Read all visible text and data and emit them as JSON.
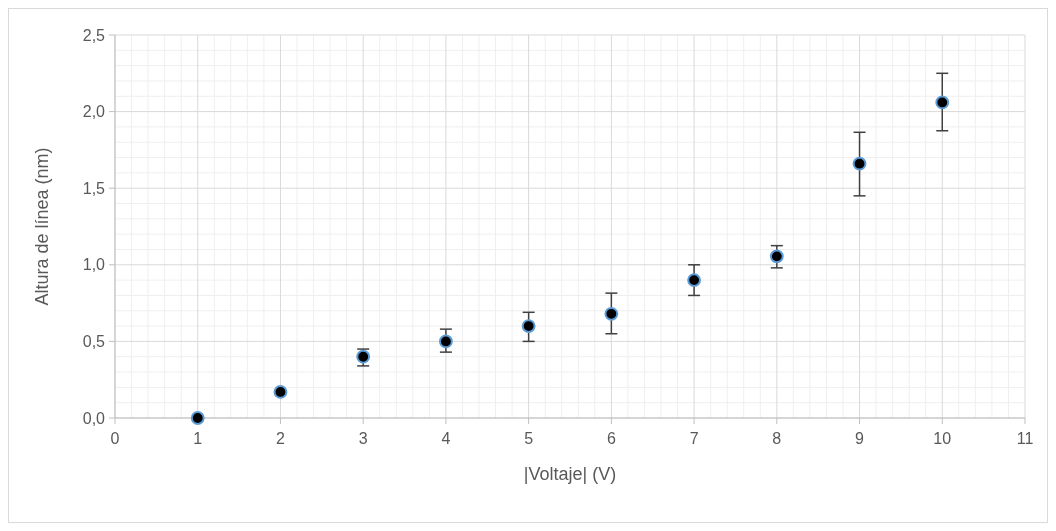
{
  "chart_data": {
    "type": "scatter",
    "xlabel": "|Voltaje| (V)",
    "ylabel": "Altura de línea (nm)",
    "x": [
      1,
      2,
      3,
      4,
      5,
      6,
      7,
      8,
      9,
      10
    ],
    "values": [
      0,
      0.17,
      0.4,
      0.5,
      0.6,
      0.68,
      0.9,
      1.055,
      1.66,
      2.06
    ],
    "errors": [
      null,
      null,
      [
        0.34,
        0.45
      ],
      [
        0.43,
        0.58
      ],
      [
        0.5,
        0.69
      ],
      [
        0.55,
        0.815
      ],
      [
        0.8,
        1.0
      ],
      [
        0.98,
        1.125
      ],
      [
        1.45,
        1.865
      ],
      [
        1.875,
        2.25
      ]
    ],
    "color": "#000000",
    "marker": "circle",
    "grid": true,
    "xlim": [
      0,
      11
    ],
    "xticks": [
      0,
      1,
      2,
      3,
      4,
      5,
      6,
      7,
      8,
      9,
      10,
      11
    ],
    "ylim": [
      0,
      2.5
    ],
    "yticks": [
      {
        "value": 0,
        "label": "0,0"
      },
      {
        "value": 0.5,
        "label": "0,5"
      },
      {
        "value": 1,
        "label": "1,0"
      },
      {
        "value": 1.5,
        "label": "1,5"
      },
      {
        "value": 2,
        "label": "2,0"
      },
      {
        "value": 2.5,
        "label": "2,5"
      }
    ]
  }
}
